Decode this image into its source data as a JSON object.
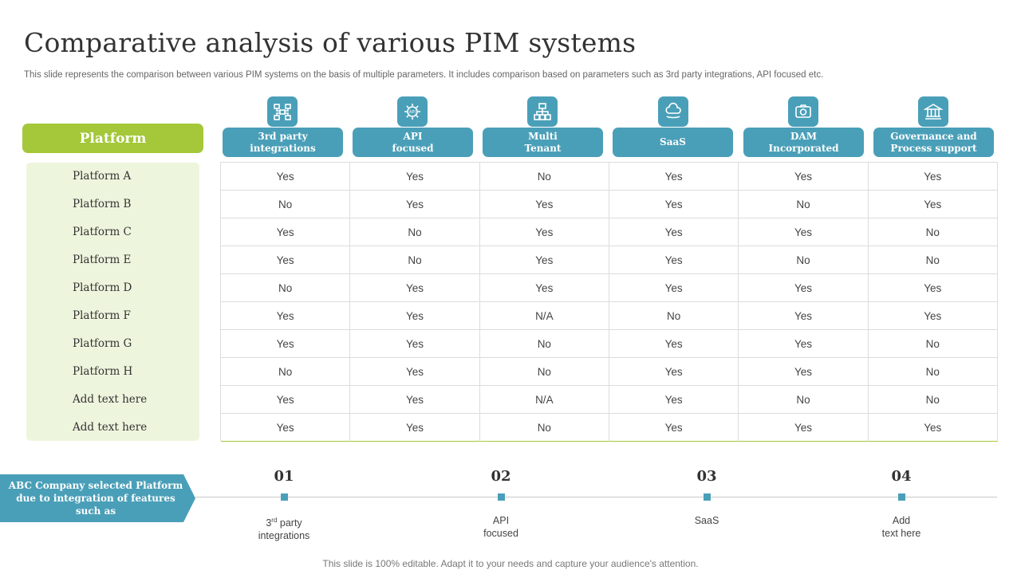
{
  "title": "Comparative analysis of various PIM systems",
  "subtitle": "This slide represents the comparison between various PIM systems on the basis of multiple parameters. It includes comparison based on parameters such as 3rd party integrations, API focused etc.",
  "platform_header": "Platform",
  "columns": [
    {
      "label": "3rd party\nintegrations",
      "icon": "integration-icon"
    },
    {
      "label": "API\nfocused",
      "icon": "api-gear-icon"
    },
    {
      "label": "Multi\nTenant",
      "icon": "network-icon"
    },
    {
      "label": "SaaS",
      "icon": "saas-cloud-icon"
    },
    {
      "label": "DAM\nIncorporated",
      "icon": "dam-icon"
    },
    {
      "label": "Governance and\nProcess support",
      "icon": "governance-building-icon"
    }
  ],
  "rows": [
    {
      "name": "Platform A",
      "values": [
        "Yes",
        "Yes",
        "No",
        "Yes",
        "Yes",
        "Yes"
      ]
    },
    {
      "name": "Platform B",
      "values": [
        "No",
        "Yes",
        "Yes",
        "Yes",
        "No",
        "Yes"
      ]
    },
    {
      "name": "Platform C",
      "values": [
        "Yes",
        "No",
        "Yes",
        "Yes",
        "Yes",
        "No"
      ]
    },
    {
      "name": "Platform E",
      "values": [
        "Yes",
        "No",
        "Yes",
        "Yes",
        "No",
        "No"
      ]
    },
    {
      "name": "Platform D",
      "values": [
        "No",
        "Yes",
        "Yes",
        "Yes",
        "Yes",
        "Yes"
      ]
    },
    {
      "name": "Platform F",
      "values": [
        "Yes",
        "Yes",
        "N/A",
        "No",
        "Yes",
        "Yes"
      ]
    },
    {
      "name": "Platform G",
      "values": [
        "Yes",
        "Yes",
        "No",
        "Yes",
        "Yes",
        "No"
      ]
    },
    {
      "name": "Platform H",
      "values": [
        "No",
        "Yes",
        "No",
        "Yes",
        "Yes",
        "No"
      ]
    },
    {
      "name": "Add text here",
      "values": [
        "Yes",
        "Yes",
        "N/A",
        "Yes",
        "No",
        "No"
      ]
    },
    {
      "name": "Add text here",
      "values": [
        "Yes",
        "Yes",
        "No",
        "Yes",
        "Yes",
        "Yes"
      ]
    }
  ],
  "callout": "ABC Company selected Platform due to integration of features such as",
  "steps": [
    {
      "number": "01",
      "label_main": "3",
      "label_sup": "rd",
      "label_rest": " party\nintegrations"
    },
    {
      "number": "02",
      "label_main": "API\nfocused",
      "label_sup": "",
      "label_rest": ""
    },
    {
      "number": "03",
      "label_main": "SaaS",
      "label_sup": "",
      "label_rest": ""
    },
    {
      "number": "04",
      "label_main": "Add\ntext here",
      "label_sup": "",
      "label_rest": ""
    }
  ],
  "footer": "This slide is 100% editable. Adapt it to your needs and capture your audience's attention.",
  "colors": {
    "teal": "#4a9fb8",
    "green": "#a4c83a",
    "panel": "#eef5dd"
  }
}
